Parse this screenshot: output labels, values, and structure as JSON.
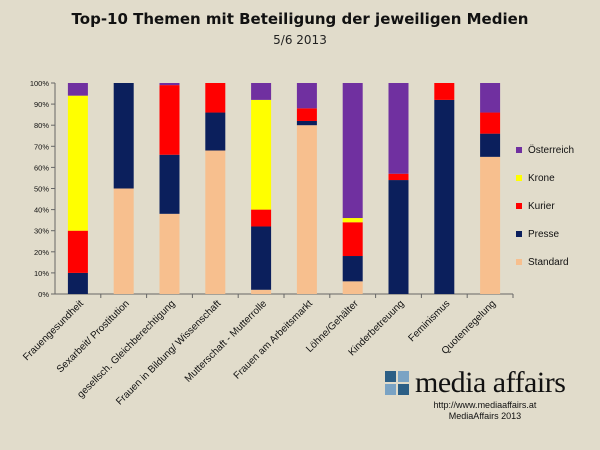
{
  "title": "Top-10 Themen mit Beteiligung der jeweiligen Medien",
  "subtitle": "5/6 2013",
  "footer": {
    "brand": "media affairs",
    "url": "http://www.mediaaffairs.at",
    "credit": "MediaAffairs 2013"
  },
  "chart_data": {
    "type": "bar",
    "stacked": true,
    "categories": [
      "Frauengesundheit",
      "Sexarbeit/ Prostitution",
      "gesellsch. Gleichberechtigung",
      "Frauen in Bildung/ Wissenschaft",
      "Mutterschaft - Mutterrolle",
      "Frauen am Arbeitsmarkt",
      "Löhne/Gehälter",
      "Kinderbetreuung",
      "Feminismus",
      "Quotenregelung"
    ],
    "series": [
      {
        "name": "Standard",
        "color": "#f7bf8e",
        "values": [
          0,
          50,
          38,
          68,
          2,
          80,
          6,
          0,
          0,
          65
        ]
      },
      {
        "name": "Presse",
        "color": "#0b1f5c",
        "values": [
          10,
          50,
          28,
          18,
          30,
          2,
          12,
          54,
          92,
          11
        ]
      },
      {
        "name": "Kurier",
        "color": "#ff0000",
        "values": [
          20,
          0,
          33,
          14,
          8,
          6,
          16,
          3,
          8,
          10
        ]
      },
      {
        "name": "Krone",
        "color": "#ffff00",
        "values": [
          64,
          0,
          0,
          0,
          52,
          0,
          2,
          0,
          0,
          0
        ]
      },
      {
        "name": "Österreich",
        "color": "#7030a0",
        "values": [
          6,
          0,
          1,
          0,
          8,
          12,
          64,
          43,
          0,
          14
        ]
      }
    ],
    "yticks": [
      "0%",
      "10%",
      "20%",
      "30%",
      "40%",
      "50%",
      "60%",
      "70%",
      "80%",
      "90%",
      "100%"
    ],
    "ylim": [
      0,
      100
    ],
    "xlabel": "",
    "ylabel": "",
    "grid": false,
    "legend_position": "right"
  }
}
